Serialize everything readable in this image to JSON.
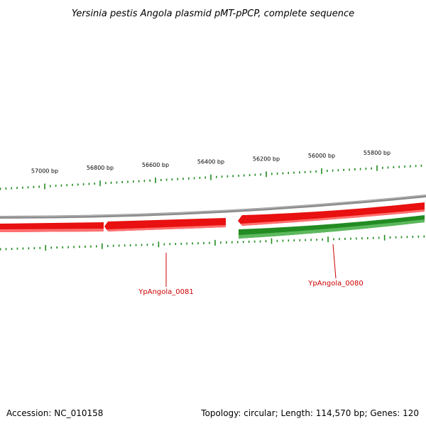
{
  "title": "Yersinia pestis Angola plasmid pMT-pPCP, complete sequence",
  "accession_text": "Accession: NC_010158",
  "summary_text": "Topology: circular; Length: 114,570 bp; Genes: 120",
  "colors": {
    "backbone": "#8c8c8c",
    "forward_gene": "#228b22",
    "reverse_gene": "#e00000",
    "tick": "#1f8a1f",
    "gene_label": "#cc0000",
    "leader": "#cc0000"
  },
  "scale_ticks": [
    {
      "position": 57000,
      "label": "57000 bp"
    },
    {
      "position": 56800,
      "label": "56800 bp"
    },
    {
      "position": 56600,
      "label": "56600 bp"
    },
    {
      "position": 56400,
      "label": "56400 bp"
    },
    {
      "position": 56200,
      "label": "56200 bp"
    },
    {
      "position": 56000,
      "label": "56000 bp"
    },
    {
      "position": 55800,
      "label": "55800 bp"
    }
  ],
  "genes": [
    {
      "id": "YpAngola_0081",
      "label": "YpAngola_0081",
      "strand": "reverse"
    },
    {
      "id": "YpAngola_0080",
      "label": "YpAngola_0080",
      "strand": "forward"
    }
  ]
}
